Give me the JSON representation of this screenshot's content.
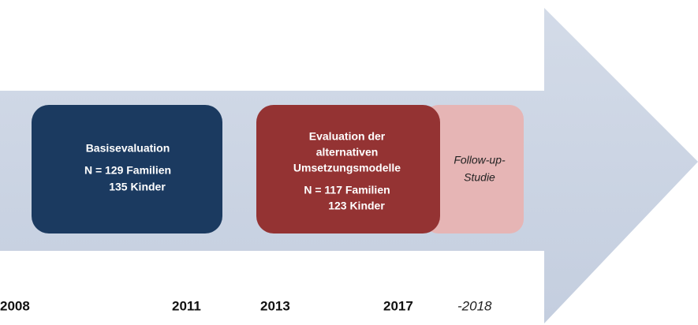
{
  "boxes": [
    {
      "lines": [
        "Basisevaluation",
        "N = 129 Familien",
        "135 Kinder"
      ]
    },
    {
      "lines": [
        "Evaluation der",
        "alternativen",
        "Umsetzungsmodelle",
        "N = 117 Familien",
        "123 Kinder"
      ]
    },
    {
      "lines": [
        "Follow-up-",
        "Studie"
      ]
    }
  ],
  "years": [
    "2008",
    "2011",
    "2013",
    "2017",
    "-2018"
  ]
}
